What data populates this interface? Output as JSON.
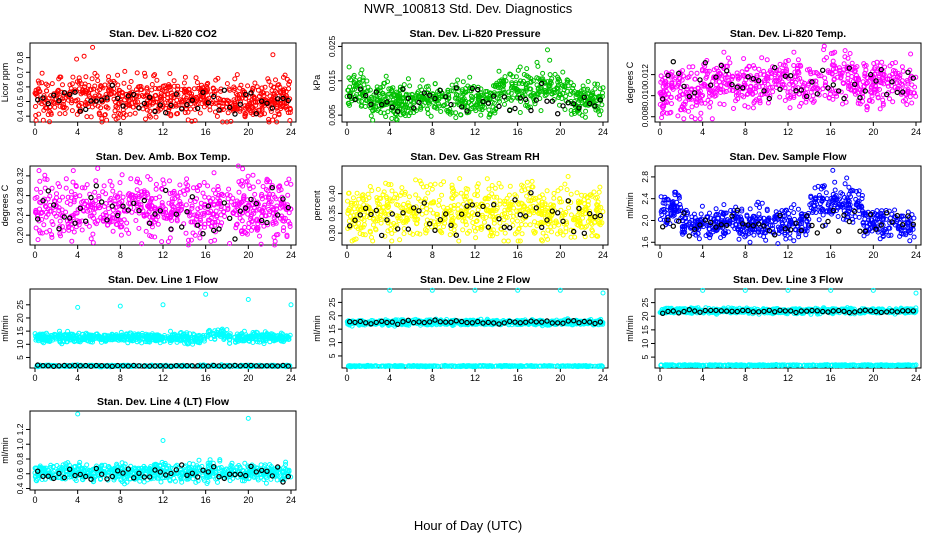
{
  "main_title": "NWR_100813  Std. Dev. Diagnostics",
  "x_axis_title": "Hour of Day (UTC)",
  "colors": {
    "red": "#ff0000",
    "green": "#00c000",
    "magenta": "#ff00ff",
    "yellow": "#ffff00",
    "blue": "#0000ff",
    "cyan": "#00ffff",
    "black": "#000000"
  },
  "chart_data": [
    {
      "type": "scatter",
      "title": "Stan. Dev. Li-820 CO2",
      "ylabel": "Licor ppm",
      "xlim": [
        0,
        24
      ],
      "ylim": [
        0.36,
        0.9
      ],
      "xticks": [
        "0",
        "4",
        "8",
        "12",
        "16",
        "20",
        "24"
      ],
      "yticks": [
        "0.4",
        "0.5",
        "0.6",
        "0.7",
        "0.8"
      ],
      "color": "#ff0000",
      "series": [
        {
          "role": "main",
          "pattern": {
            "baseline": 0.52,
            "noise": 0.07,
            "min": 0.36,
            "max": 0.88,
            "n": 720
          },
          "points": [
            [
              3.9,
              0.79
            ],
            [
              5.4,
              0.87
            ],
            [
              4.6,
              0.81
            ],
            [
              22.3,
              0.82
            ],
            [
              23.9,
              0.37
            ]
          ]
        },
        {
          "role": "overlay",
          "pattern": {
            "baseline": 0.5,
            "noise": 0.05,
            "min": 0.38,
            "max": 0.65,
            "n": 48
          }
        }
      ]
    },
    {
      "type": "scatter",
      "title": "Stan. Dev. Li-820 Pressure",
      "ylabel": "kPa",
      "xlim": [
        0,
        24
      ],
      "ylim": [
        0.003,
        0.026
      ],
      "xticks": [
        "0",
        "4",
        "8",
        "12",
        "16",
        "20",
        "24"
      ],
      "yticks": [
        "0.005",
        "0.015",
        "0.025"
      ],
      "color": "#00c000",
      "series": [
        {
          "role": "main",
          "pattern": {
            "baseline": 0.0095,
            "noise": 0.0025,
            "min": 0.003,
            "max": 0.024,
            "n": 720,
            "bumps": [
              [
                0,
                2,
                0.003
              ],
              [
                14,
                21,
                0.004
              ]
            ]
          },
          "points": [
            [
              0.2,
              0.019
            ],
            [
              11.5,
              0.016
            ],
            [
              18.8,
              0.024
            ],
            [
              19.0,
              0.021
            ]
          ]
        },
        {
          "role": "overlay",
          "pattern": {
            "baseline": 0.009,
            "noise": 0.002,
            "min": 0.004,
            "max": 0.017,
            "n": 48
          }
        }
      ]
    },
    {
      "type": "scatter",
      "title": "Stan. Dev. Li-820 Temp.",
      "ylabel": "degrees C",
      "xlim": [
        0,
        24
      ],
      "ylim": [
        0.0075,
        0.015
      ],
      "xticks": [
        "0",
        "4",
        "8",
        "12",
        "16",
        "20",
        "24"
      ],
      "yticks": [
        "0.008",
        "0.010",
        "0.012"
      ],
      "color": "#ff00ff",
      "series": [
        {
          "role": "main",
          "pattern": {
            "baseline": 0.0112,
            "noise": 0.0012,
            "min": 0.0078,
            "max": 0.0145,
            "n": 700,
            "bumps": [
              [
                0,
                4,
                -0.0012
              ],
              [
                15,
                18,
                0.0008
              ]
            ]
          },
          "points": [
            [
              4.9,
              0.0078
            ],
            [
              15.4,
              0.0147
            ]
          ]
        },
        {
          "role": "overlay",
          "pattern": {
            "baseline": 0.0112,
            "noise": 0.001,
            "min": 0.0085,
            "max": 0.014,
            "n": 48
          }
        }
      ]
    },
    {
      "type": "scatter",
      "title": "Stan. Dev. Amb. Box Temp.",
      "ylabel": "degrees C",
      "xlim": [
        0,
        24
      ],
      "ylim": [
        0.18,
        0.34
      ],
      "xticks": [
        "0",
        "4",
        "8",
        "12",
        "16",
        "20",
        "24"
      ],
      "yticks": [
        "0.20",
        "0.24",
        "0.28",
        "0.32"
      ],
      "color": "#ff00ff",
      "series": [
        {
          "role": "main",
          "pattern": {
            "baseline": 0.255,
            "noise": 0.03,
            "min": 0.18,
            "max": 0.34,
            "n": 700
          }
        },
        {
          "role": "overlay",
          "pattern": {
            "baseline": 0.25,
            "noise": 0.025,
            "min": 0.19,
            "max": 0.3,
            "n": 48
          }
        }
      ]
    },
    {
      "type": "scatter",
      "title": "Stan. Dev. Gas Stream RH",
      "ylabel": "percent",
      "xlim": [
        0,
        24
      ],
      "ylim": [
        0.27,
        0.47
      ],
      "xticks": [
        "0",
        "4",
        "8",
        "12",
        "16",
        "20",
        "24"
      ],
      "yticks": [
        "0.30",
        "0.35",
        "0.40"
      ],
      "color": "#ffff00",
      "series": [
        {
          "role": "main",
          "pattern": {
            "baseline": 0.355,
            "noise": 0.035,
            "min": 0.28,
            "max": 0.46,
            "n": 700
          }
        },
        {
          "role": "overlay",
          "pattern": {
            "baseline": 0.345,
            "noise": 0.025,
            "min": 0.29,
            "max": 0.41,
            "n": 48
          }
        }
      ]
    },
    {
      "type": "scatter",
      "title": "Stan. Dev. Sample Flow",
      "ylabel": "ml/min",
      "xlim": [
        0,
        24
      ],
      "ylim": [
        1.55,
        3.0
      ],
      "xticks": [
        "0",
        "4",
        "8",
        "12",
        "16",
        "20",
        "24"
      ],
      "yticks": [
        "1.6",
        "2.0",
        "2.4",
        "2.8"
      ],
      "color": "#0000ff",
      "series": [
        {
          "role": "main",
          "pattern": {
            "baseline": 1.95,
            "noise": 0.14,
            "min": 1.55,
            "max": 2.95,
            "n": 700,
            "bumps": [
              [
                0,
                2,
                0.3
              ],
              [
                14,
                19,
                0.45
              ]
            ]
          },
          "points": [
            [
              16.2,
              2.92
            ],
            [
              17.5,
              2.78
            ]
          ]
        },
        {
          "role": "overlay",
          "pattern": {
            "baseline": 1.95,
            "noise": 0.12,
            "min": 1.7,
            "max": 2.5,
            "n": 48
          }
        }
      ]
    },
    {
      "type": "scatter",
      "title": "Stan. Dev. Line 1 Flow",
      "ylabel": "ml/min",
      "xlim": [
        0,
        24
      ],
      "ylim": [
        1,
        31
      ],
      "xticks": [
        "0",
        "4",
        "8",
        "12",
        "16",
        "20",
        "24"
      ],
      "yticks": [
        "5",
        "10",
        "15",
        "20",
        "25"
      ],
      "color": "#00ffff",
      "series": [
        {
          "role": "main",
          "pattern": {
            "baseline": 12.5,
            "noise": 0.9,
            "min": 10,
            "max": 16,
            "n": 700,
            "bumps": [
              [
                16,
                18,
                1.8
              ]
            ]
          }
        },
        {
          "role": "main",
          "pattern": {
            "baseline": 1.8,
            "noise": 0.15,
            "min": 1.3,
            "max": 2.3,
            "n": 360
          }
        },
        {
          "role": "outlier",
          "points": [
            [
              4,
              24
            ],
            [
              8,
              24.5
            ],
            [
              12,
              25
            ],
            [
              16,
              29
            ],
            [
              20,
              27
            ],
            [
              24,
              25
            ]
          ]
        },
        {
          "role": "overlay",
          "pattern": {
            "baseline": 1.8,
            "noise": 0.1,
            "min": 1.4,
            "max": 2.2,
            "n": 48
          }
        }
      ]
    },
    {
      "type": "scatter",
      "title": "Stan. Dev. Line 2 Flow",
      "ylabel": "ml/min",
      "xlim": [
        0,
        24
      ],
      "ylim": [
        0.5,
        30
      ],
      "xticks": [
        "0",
        "4",
        "8",
        "12",
        "16",
        "20",
        "24"
      ],
      "yticks": [
        "5",
        "10",
        "15",
        "20",
        "25"
      ],
      "color": "#00ffff",
      "series": [
        {
          "role": "main",
          "pattern": {
            "baseline": 17.5,
            "noise": 0.5,
            "min": 16,
            "max": 19,
            "n": 700
          }
        },
        {
          "role": "main",
          "pattern": {
            "baseline": 1.2,
            "noise": 0.1,
            "min": 0.8,
            "max": 1.6,
            "n": 360
          }
        },
        {
          "role": "outlier",
          "points": [
            [
              4,
              29.5
            ],
            [
              8,
              29.5
            ],
            [
              12,
              29.5
            ],
            [
              16,
              29.5
            ],
            [
              20,
              29.5
            ],
            [
              24,
              28.5
            ]
          ]
        },
        {
          "role": "overlay",
          "pattern": {
            "baseline": 17.6,
            "noise": 0.3,
            "min": 16.8,
            "max": 18.4,
            "n": 48
          }
        }
      ]
    },
    {
      "type": "scatter",
      "title": "Stan. Dev. Line 3 Flow",
      "ylabel": "ml/min",
      "xlim": [
        0,
        24
      ],
      "ylim": [
        1,
        30
      ],
      "xticks": [
        "0",
        "4",
        "8",
        "12",
        "16",
        "20",
        "24"
      ],
      "yticks": [
        "5",
        "10",
        "15",
        "20",
        "25"
      ],
      "color": "#00ffff",
      "series": [
        {
          "role": "main",
          "pattern": {
            "baseline": 22,
            "noise": 0.5,
            "min": 20.5,
            "max": 23.5,
            "n": 700
          }
        },
        {
          "role": "main",
          "pattern": {
            "baseline": 2.0,
            "noise": 0.1,
            "min": 1.6,
            "max": 2.4,
            "n": 360
          }
        },
        {
          "role": "outlier",
          "points": [
            [
              4,
              29.5
            ],
            [
              8,
              29.5
            ],
            [
              12,
              29.5
            ],
            [
              16,
              29.5
            ],
            [
              20,
              29.5
            ],
            [
              24,
              28.5
            ]
          ]
        },
        {
          "role": "overlay",
          "pattern": {
            "baseline": 21.8,
            "noise": 0.3,
            "min": 21,
            "max": 22.6,
            "n": 48
          }
        }
      ]
    },
    {
      "type": "scatter",
      "title": "Stan. Dev. Line 4 (LT) Flow",
      "ylabel": "ml/min",
      "xlim": [
        0,
        24
      ],
      "ylim": [
        0.38,
        1.45
      ],
      "xticks": [
        "0",
        "4",
        "8",
        "12",
        "16",
        "20",
        "24"
      ],
      "yticks": [
        "0.4",
        "0.6",
        "0.8",
        "1.0",
        "1.2"
      ],
      "color": "#00ffff",
      "series": [
        {
          "role": "main",
          "pattern": {
            "baseline": 0.62,
            "noise": 0.06,
            "min": 0.45,
            "max": 0.8,
            "n": 700
          }
        },
        {
          "role": "outlier",
          "points": [
            [
              4,
              1.41
            ],
            [
              12,
              1.05
            ],
            [
              20,
              1.35
            ]
          ]
        },
        {
          "role": "overlay",
          "pattern": {
            "baseline": 0.6,
            "noise": 0.05,
            "min": 0.48,
            "max": 0.74,
            "n": 48
          }
        }
      ]
    }
  ]
}
